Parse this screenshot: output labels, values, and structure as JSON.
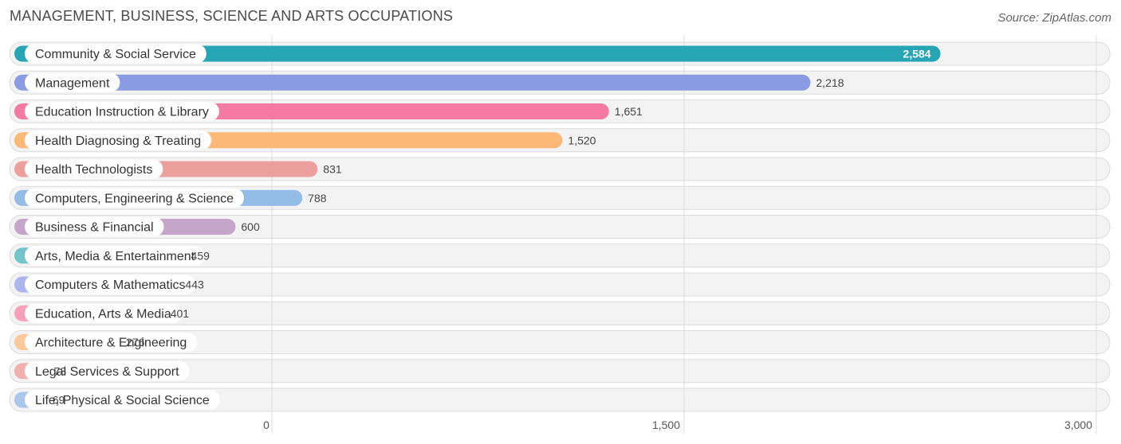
{
  "chart_data": {
    "type": "bar",
    "orientation": "horizontal",
    "title": "MANAGEMENT, BUSINESS, SCIENCE AND ARTS OCCUPATIONS",
    "source": "Source: ZipAtlas.com",
    "xlim": [
      0,
      3000
    ],
    "ticks": [
      {
        "value": 0,
        "label": "0"
      },
      {
        "value": 1500,
        "label": "1,500"
      },
      {
        "value": 3000,
        "label": "3,000"
      }
    ],
    "grid": true,
    "categories": [
      {
        "label": "Community & Social Service",
        "value": 2584,
        "value_label": "2,584",
        "color": "#26a5b5"
      },
      {
        "label": "Management",
        "value": 2218,
        "value_label": "2,218",
        "color": "#8b9be3"
      },
      {
        "label": "Education Instruction & Library",
        "value": 1651,
        "value_label": "1,651",
        "color": "#f47aa3"
      },
      {
        "label": "Health Diagnosing & Treating",
        "value": 1520,
        "value_label": "1,520",
        "color": "#fbb877"
      },
      {
        "label": "Health Technologists",
        "value": 831,
        "value_label": "831",
        "color": "#eca09d"
      },
      {
        "label": "Computers, Engineering & Science",
        "value": 788,
        "value_label": "788",
        "color": "#93bde6"
      },
      {
        "label": "Business & Financial",
        "value": 600,
        "value_label": "600",
        "color": "#c6a5ca"
      },
      {
        "label": "Arts, Media & Entertainment",
        "value": 459,
        "value_label": "459",
        "color": "#72c5cd"
      },
      {
        "label": "Computers & Mathematics",
        "value": 443,
        "value_label": "443",
        "color": "#abb6ec"
      },
      {
        "label": "Education, Arts & Media",
        "value": 401,
        "value_label": "401",
        "color": "#f6a0bc"
      },
      {
        "label": "Architecture & Engineering",
        "value": 276,
        "value_label": "276",
        "color": "#fcc99a"
      },
      {
        "label": "Legal Services & Support",
        "value": 73,
        "value_label": "73",
        "color": "#f0b0ad"
      },
      {
        "label": "Life, Physical & Social Science",
        "value": 69,
        "value_label": "69",
        "color": "#a9c7ec"
      }
    ]
  }
}
